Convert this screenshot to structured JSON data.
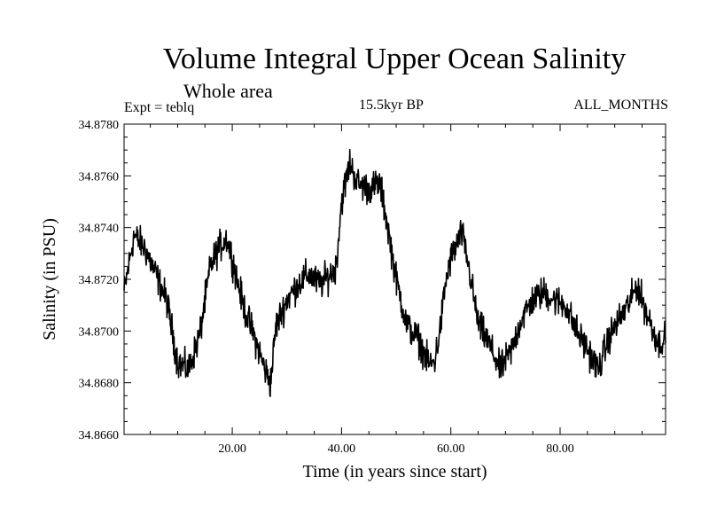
{
  "header": {
    "title": "Volume Integral Upper Ocean Salinity",
    "subtitle": "Whole area",
    "experiment": "Expt = teblq",
    "period": "15.5kyr BP",
    "months": "ALL_MONTHS"
  },
  "chart_data": {
    "type": "line",
    "title": "Volume Integral Upper Ocean Salinity",
    "xlabel": "Time (in years since start)",
    "ylabel": "Salinity (in PSU)",
    "xlim": [
      0.2,
      99.3
    ],
    "ylim": [
      34.866,
      34.878
    ],
    "xticks": [
      20,
      40,
      60,
      80
    ],
    "xtick_labels": [
      "20.00",
      "40.00",
      "60.00",
      "80.00"
    ],
    "yticks": [
      34.866,
      34.868,
      34.87,
      34.872,
      34.874,
      34.876,
      34.878
    ],
    "ytick_labels": [
      "34.8660",
      "34.8680",
      "34.8700",
      "34.8720",
      "34.8740",
      "34.8760",
      "34.8780"
    ],
    "grid": false,
    "series": [
      {
        "name": "salinity",
        "color": "#000000",
        "noise_amplitude": 0.0009,
        "x": [
          0.2,
          2,
          4,
          6,
          8,
          10,
          12,
          14,
          16,
          17.5,
          19,
          20,
          22,
          24,
          26,
          27,
          28,
          30,
          32,
          34,
          36,
          38,
          39,
          40,
          41.5,
          43,
          45,
          47,
          48,
          50,
          52,
          54,
          56,
          57,
          58,
          59,
          60,
          61,
          62,
          63,
          65,
          67,
          69,
          71,
          73,
          75,
          77,
          79,
          81,
          83,
          85,
          87,
          89,
          91,
          93,
          94,
          96,
          98,
          99.3
        ],
        "values": [
          34.8715,
          34.8737,
          34.8732,
          34.8722,
          34.8712,
          34.8688,
          34.8685,
          34.8698,
          34.8725,
          34.8732,
          34.8736,
          34.8728,
          34.871,
          34.8698,
          34.8685,
          34.868,
          34.8702,
          34.8712,
          34.8718,
          34.8722,
          34.8718,
          34.8722,
          34.8725,
          34.875,
          34.8765,
          34.8757,
          34.8755,
          34.8757,
          34.8746,
          34.872,
          34.8702,
          34.8697,
          34.8687,
          34.8688,
          34.87,
          34.8718,
          34.8728,
          34.8733,
          34.8738,
          34.8728,
          34.8703,
          34.8695,
          34.8685,
          34.8692,
          34.8705,
          34.8712,
          34.8715,
          34.8712,
          34.871,
          34.87,
          34.8693,
          34.8685,
          34.8698,
          34.8705,
          34.8712,
          34.8718,
          34.8706,
          34.8695,
          34.8698
        ]
      }
    ]
  }
}
